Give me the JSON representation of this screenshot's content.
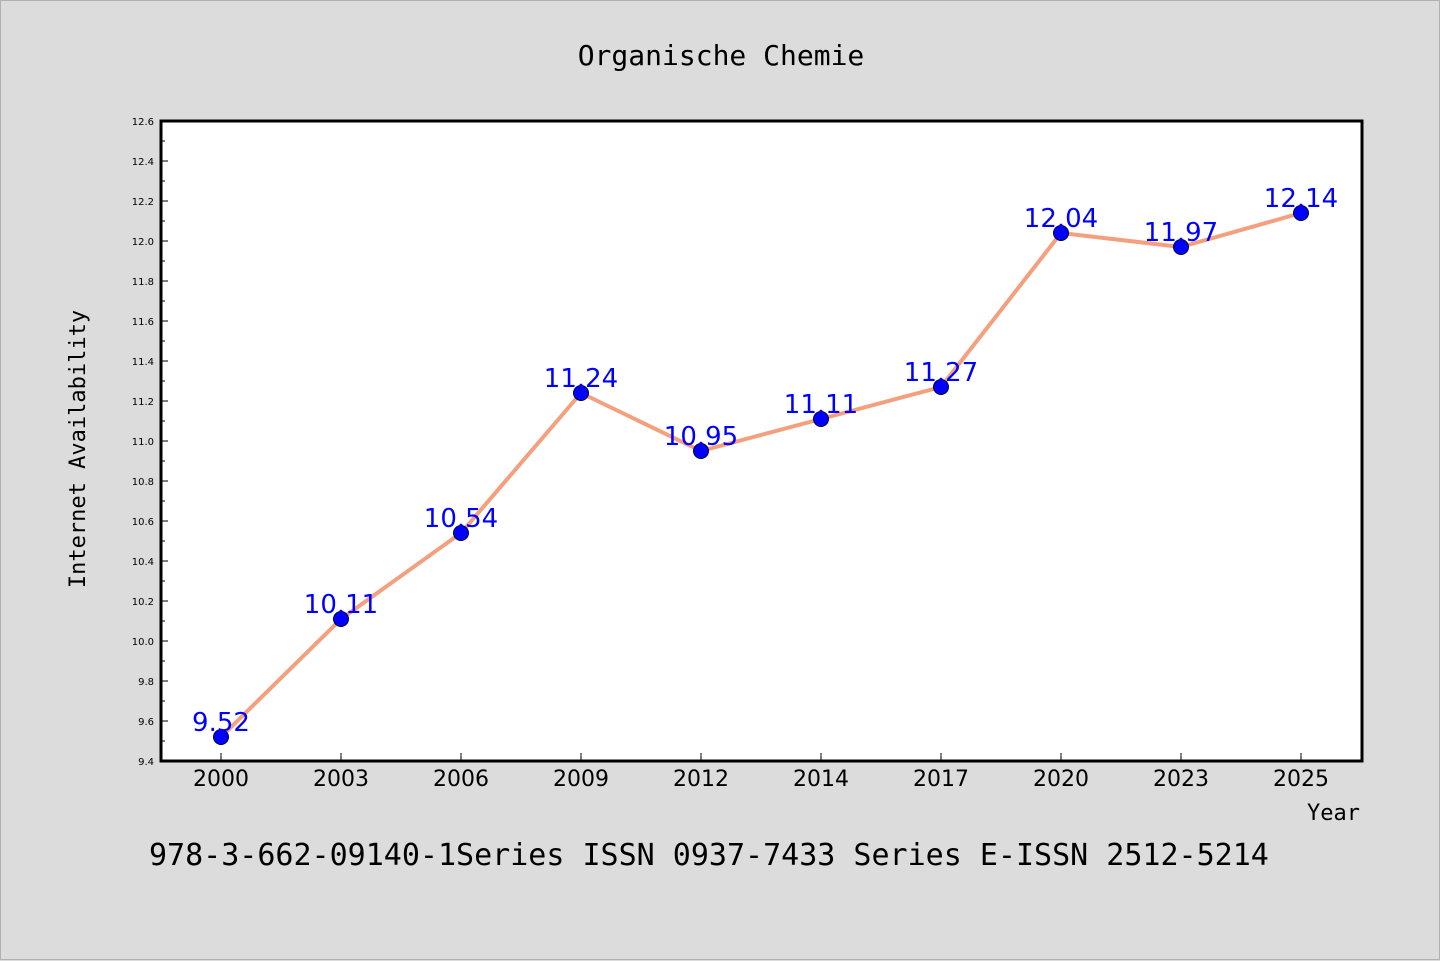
{
  "chart_data": {
    "type": "line",
    "title": "Organische Chemie",
    "xlabel": "Year",
    "ylabel": "Internet Availability",
    "categories": [
      "2000",
      "2003",
      "2006",
      "2009",
      "2012",
      "2014",
      "2017",
      "2020",
      "2023",
      "2025"
    ],
    "series": [
      {
        "values": [
          9.52,
          10.11,
          10.54,
          11.24,
          10.95,
          11.11,
          11.27,
          12.04,
          11.97,
          12.14
        ],
        "labels": [
          "9.52",
          "10.11",
          "10.54",
          "11.24",
          "10.95",
          "11.11",
          "11.27",
          "12.04",
          "11.97",
          "12.14"
        ],
        "line_color": "#f4a07e",
        "marker_color": "#0000ff"
      }
    ],
    "ylim": [
      9.4,
      12.6
    ],
    "yticks": [
      "9.4",
      "9.6",
      "9.8",
      "10.0",
      "10.2",
      "10.4",
      "10.6",
      "10.8",
      "11.0",
      "11.2",
      "11.4",
      "11.6",
      "11.8",
      "12.0",
      "12.2",
      "12.4",
      "12.6"
    ],
    "grid": false,
    "legend": "none"
  },
  "footer": {
    "text": "978-3-662-09140-1Series ISSN 0937-7433 Series E-ISSN 2512-5214"
  }
}
